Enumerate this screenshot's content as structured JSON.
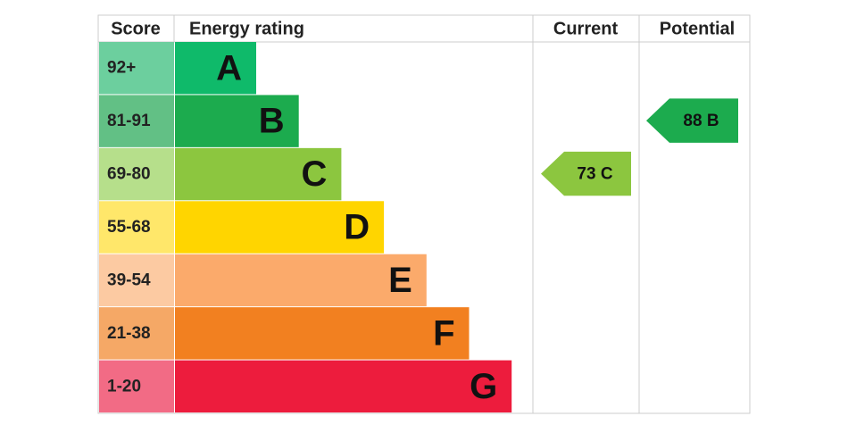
{
  "header": {
    "score": "Score",
    "rating": "Energy rating",
    "current": "Current",
    "potential": "Potential"
  },
  "bands": [
    {
      "score": "92+",
      "letter": "A",
      "color": "#0fba6a",
      "light": "#6ccf9e"
    },
    {
      "score": "81-91",
      "letter": "B",
      "color": "#1cab4e",
      "light": "#62c085"
    },
    {
      "score": "69-80",
      "letter": "C",
      "color": "#8cc63f",
      "light": "#b6df8b"
    },
    {
      "score": "55-68",
      "letter": "D",
      "color": "#ffd500",
      "light": "#ffe76a"
    },
    {
      "score": "39-54",
      "letter": "E",
      "color": "#fbaa6b",
      "light": "#fccaa2"
    },
    {
      "score": "21-38",
      "letter": "F",
      "color": "#f28020",
      "light": "#f5a866"
    },
    {
      "score": "1-20",
      "letter": "G",
      "color": "#ed1c3d",
      "light": "#f26b85"
    }
  ],
  "current": {
    "label": "73 C",
    "letter": "C"
  },
  "potential": {
    "label": "88 B",
    "letter": "B"
  }
}
